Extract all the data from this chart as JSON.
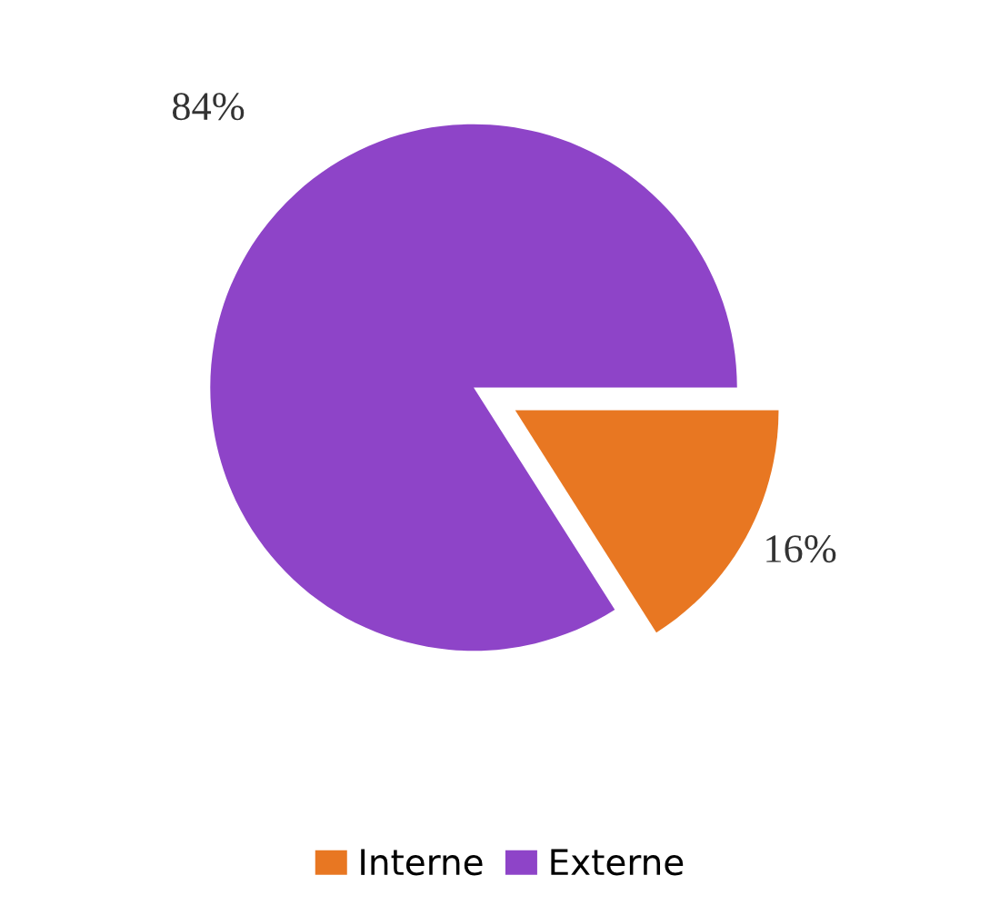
{
  "chart_data": {
    "type": "pie",
    "categories": [
      "Interne",
      "Externe"
    ],
    "values": [
      16,
      84
    ],
    "colors": [
      "#e87722",
      "#8e44c8"
    ],
    "value_labels": [
      "16%",
      "84%"
    ],
    "legend": "bottom"
  }
}
